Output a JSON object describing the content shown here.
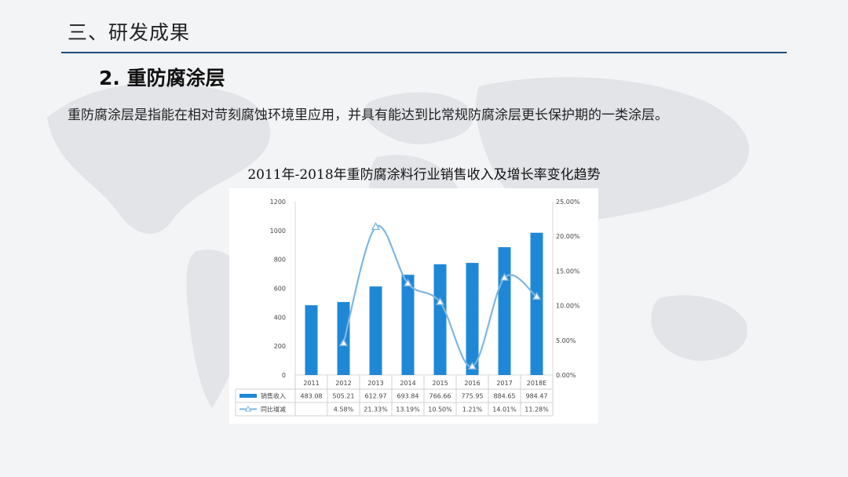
{
  "slide": {
    "section_title": "三、研发成果",
    "subtitle": "2. 重防腐涂层",
    "description": "重防腐涂层是指能在相对苛刻腐蚀环境里应用，并具有能达到比常规防腐涂层更长保护期的一类涂层。",
    "chart_caption": "2011年-2018年重防腐涂料行业销售收入及增长率变化趋势"
  },
  "colors": {
    "bar": "#1f88d6",
    "line": "#7fb6e0",
    "rule": "#1f4e79"
  },
  "chart_data": {
    "type": "bar",
    "title": "2011年-2018年重防腐涂料行业销售收入及增长率变化趋势",
    "categories": [
      "2011",
      "2012",
      "2013",
      "2014",
      "2015",
      "2016",
      "2017",
      "2018E"
    ],
    "series": [
      {
        "name": "销售收入",
        "type": "bar",
        "axis": "left",
        "values": [
          483.08,
          505.21,
          612.97,
          693.84,
          766.66,
          775.95,
          884.65,
          984.47
        ],
        "labels": [
          "483.08",
          "505.21",
          "612.97",
          "693.84",
          "766.66",
          "775.95",
          "884.65",
          "984.47"
        ]
      },
      {
        "name": "同比增减",
        "type": "line",
        "axis": "right",
        "values": [
          null,
          4.58,
          21.33,
          13.19,
          10.5,
          1.21,
          14.01,
          11.28
        ],
        "labels": [
          "",
          "4.58%",
          "21.33%",
          "13.19%",
          "10.50%",
          "1.21%",
          "14.01%",
          "11.28%"
        ]
      }
    ],
    "left_axis": {
      "ylim": [
        0,
        1200
      ],
      "ticks": [
        "0",
        "200",
        "400",
        "600",
        "800",
        "1000",
        "1200"
      ]
    },
    "right_axis": {
      "ylim": [
        0,
        25
      ],
      "ticks": [
        "0.00%",
        "5.00%",
        "10.00%",
        "15.00%",
        "20.00%",
        "25.00%"
      ]
    },
    "grid": false,
    "legend": "data-table"
  }
}
